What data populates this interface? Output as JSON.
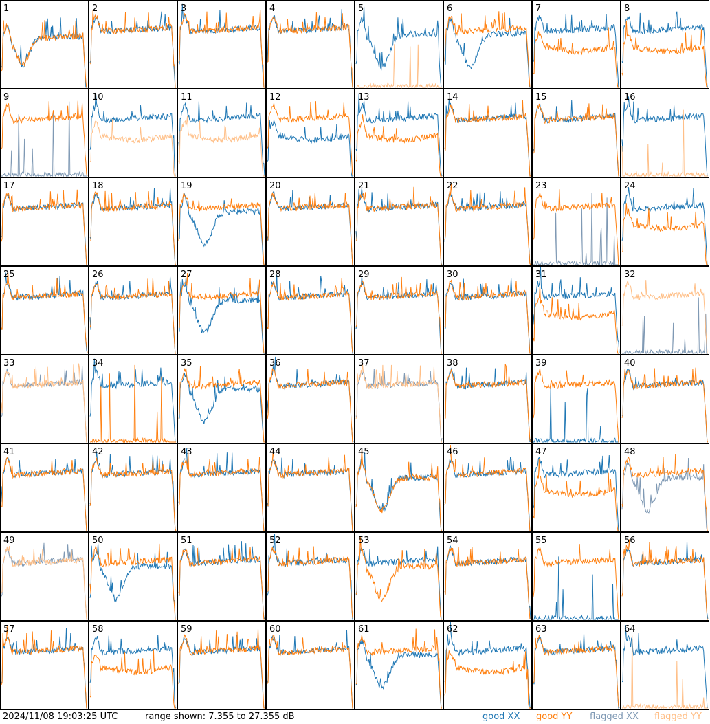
{
  "footer": {
    "timestamp": "2024/11/08 19:03:25 UTC",
    "range_text": "range shown: 7.355 to 27.355 dB"
  },
  "legend": [
    {
      "label": "good XX",
      "color": "#1f77b4"
    },
    {
      "label": "good YY",
      "color": "#ff7f0e"
    },
    {
      "label": "flagged XX",
      "color": "#7f99b4"
    },
    {
      "label": "flagged YY",
      "color": "#ffbf87"
    }
  ],
  "chart_data": {
    "type": "line",
    "ylim": [
      7.355,
      27.355
    ],
    "y_unit": "dB",
    "panels": [
      {
        "label": "1",
        "xx": "hump",
        "yy": "hump",
        "flag_xx": false,
        "flag_yy": false
      },
      {
        "label": "2",
        "xx": "flat",
        "yy": "flat",
        "flag_xx": false,
        "flag_yy": false
      },
      {
        "label": "3",
        "xx": "flat",
        "yy": "flat",
        "flag_xx": false,
        "flag_yy": false
      },
      {
        "label": "4",
        "xx": "flat",
        "yy": "flat",
        "flag_xx": false,
        "flag_yy": false
      },
      {
        "label": "5",
        "xx": "dip",
        "yy": "dead",
        "flag_xx": false,
        "flag_yy": true
      },
      {
        "label": "6",
        "xx": "dip",
        "yy": "flat",
        "flag_xx": false,
        "flag_yy": false
      },
      {
        "label": "7",
        "xx": "flat",
        "yy": "low",
        "flag_xx": false,
        "flag_yy": false
      },
      {
        "label": "8",
        "xx": "flat",
        "yy": "low",
        "flag_xx": false,
        "flag_yy": false
      },
      {
        "label": "9",
        "xx": "dead",
        "yy": "flat",
        "flag_xx": true,
        "flag_yy": false
      },
      {
        "label": "10",
        "xx": "flat",
        "yy": "low",
        "flag_xx": false,
        "flag_yy": true
      },
      {
        "label": "11",
        "xx": "flat",
        "yy": "low",
        "flag_xx": false,
        "flag_yy": true
      },
      {
        "label": "12",
        "xx": "low",
        "yy": "flat",
        "flag_xx": false,
        "flag_yy": false
      },
      {
        "label": "13",
        "xx": "flat",
        "yy": "low",
        "flag_xx": false,
        "flag_yy": false
      },
      {
        "label": "14",
        "xx": "flat",
        "yy": "flat",
        "flag_xx": false,
        "flag_yy": false
      },
      {
        "label": "15",
        "xx": "flat",
        "yy": "flat",
        "flag_xx": false,
        "flag_yy": false
      },
      {
        "label": "16",
        "xx": "flat",
        "yy": "dead",
        "flag_xx": false,
        "flag_yy": true
      },
      {
        "label": "17",
        "xx": "flat",
        "yy": "flat",
        "flag_xx": false,
        "flag_yy": false
      },
      {
        "label": "18",
        "xx": "flat",
        "yy": "flat",
        "flag_xx": false,
        "flag_yy": false
      },
      {
        "label": "19",
        "xx": "dip",
        "yy": "flat",
        "flag_xx": false,
        "flag_yy": false
      },
      {
        "label": "20",
        "xx": "flat",
        "yy": "flat",
        "flag_xx": false,
        "flag_yy": false
      },
      {
        "label": "21",
        "xx": "flat",
        "yy": "flat",
        "flag_xx": false,
        "flag_yy": false
      },
      {
        "label": "22",
        "xx": "flat",
        "yy": "flat",
        "flag_xx": false,
        "flag_yy": false
      },
      {
        "label": "23",
        "xx": "dead",
        "yy": "flat",
        "flag_xx": true,
        "flag_yy": false
      },
      {
        "label": "24",
        "xx": "flat",
        "yy": "low",
        "flag_xx": false,
        "flag_yy": false
      },
      {
        "label": "25",
        "xx": "flat",
        "yy": "flat",
        "flag_xx": false,
        "flag_yy": false
      },
      {
        "label": "26",
        "xx": "flat",
        "yy": "flat",
        "flag_xx": false,
        "flag_yy": false
      },
      {
        "label": "27",
        "xx": "dip",
        "yy": "flat",
        "flag_xx": false,
        "flag_yy": false
      },
      {
        "label": "28",
        "xx": "flat",
        "yy": "flat",
        "flag_xx": false,
        "flag_yy": false
      },
      {
        "label": "29",
        "xx": "flat",
        "yy": "flat",
        "flag_xx": false,
        "flag_yy": false
      },
      {
        "label": "30",
        "xx": "flat",
        "yy": "flat",
        "flag_xx": false,
        "flag_yy": false
      },
      {
        "label": "31",
        "xx": "flat",
        "yy": "low",
        "flag_xx": false,
        "flag_yy": false
      },
      {
        "label": "32",
        "xx": "dead",
        "yy": "flat",
        "flag_xx": true,
        "flag_yy": true
      },
      {
        "label": "33",
        "xx": "flat",
        "yy": "flat",
        "flag_xx": true,
        "flag_yy": true
      },
      {
        "label": "34",
        "xx": "flat",
        "yy": "dead",
        "flag_xx": false,
        "flag_yy": false
      },
      {
        "label": "35",
        "xx": "dip",
        "yy": "flat",
        "flag_xx": false,
        "flag_yy": false
      },
      {
        "label": "36",
        "xx": "flat",
        "yy": "flat",
        "flag_xx": false,
        "flag_yy": false
      },
      {
        "label": "37",
        "xx": "flat",
        "yy": "flat",
        "flag_xx": true,
        "flag_yy": true
      },
      {
        "label": "38",
        "xx": "flat",
        "yy": "flat",
        "flag_xx": false,
        "flag_yy": false
      },
      {
        "label": "39",
        "xx": "dead",
        "yy": "flat",
        "flag_xx": false,
        "flag_yy": false
      },
      {
        "label": "40",
        "xx": "flat",
        "yy": "flat",
        "flag_xx": false,
        "flag_yy": false
      },
      {
        "label": "41",
        "xx": "flat",
        "yy": "flat",
        "flag_xx": false,
        "flag_yy": false
      },
      {
        "label": "42",
        "xx": "flat",
        "yy": "flat",
        "flag_xx": false,
        "flag_yy": false
      },
      {
        "label": "43",
        "xx": "flat",
        "yy": "flat",
        "flag_xx": false,
        "flag_yy": false
      },
      {
        "label": "44",
        "xx": "flat",
        "yy": "flat",
        "flag_xx": false,
        "flag_yy": false
      },
      {
        "label": "45",
        "xx": "dip",
        "yy": "dip",
        "flag_xx": false,
        "flag_yy": false
      },
      {
        "label": "46",
        "xx": "flat",
        "yy": "flat",
        "flag_xx": false,
        "flag_yy": false
      },
      {
        "label": "47",
        "xx": "flat",
        "yy": "low",
        "flag_xx": false,
        "flag_yy": false
      },
      {
        "label": "48",
        "xx": "dip",
        "yy": "flat",
        "flag_xx": true,
        "flag_yy": false
      },
      {
        "label": "49",
        "xx": "flat",
        "yy": "flat",
        "flag_xx": true,
        "flag_yy": true
      },
      {
        "label": "50",
        "xx": "dip",
        "yy": "flat",
        "flag_xx": false,
        "flag_yy": false
      },
      {
        "label": "51",
        "xx": "flat",
        "yy": "flat",
        "flag_xx": false,
        "flag_yy": false
      },
      {
        "label": "52",
        "xx": "flat",
        "yy": "flat",
        "flag_xx": false,
        "flag_yy": false
      },
      {
        "label": "53",
        "xx": "flat",
        "yy": "dip",
        "flag_xx": false,
        "flag_yy": false
      },
      {
        "label": "54",
        "xx": "flat",
        "yy": "flat",
        "flag_xx": false,
        "flag_yy": false
      },
      {
        "label": "55",
        "xx": "dead",
        "yy": "flat",
        "flag_xx": false,
        "flag_yy": false
      },
      {
        "label": "56",
        "xx": "flat",
        "yy": "flat",
        "flag_xx": false,
        "flag_yy": false
      },
      {
        "label": "57",
        "xx": "flat",
        "yy": "flat",
        "flag_xx": false,
        "flag_yy": false
      },
      {
        "label": "58",
        "xx": "flat",
        "yy": "low",
        "flag_xx": false,
        "flag_yy": false
      },
      {
        "label": "59",
        "xx": "flat",
        "yy": "flat",
        "flag_xx": false,
        "flag_yy": false
      },
      {
        "label": "60",
        "xx": "flat",
        "yy": "flat",
        "flag_xx": false,
        "flag_yy": false
      },
      {
        "label": "61",
        "xx": "dip",
        "yy": "flat",
        "flag_xx": false,
        "flag_yy": false
      },
      {
        "label": "62",
        "xx": "flat",
        "yy": "low",
        "flag_xx": false,
        "flag_yy": false
      },
      {
        "label": "63",
        "xx": "flat",
        "yy": "flat",
        "flag_xx": false,
        "flag_yy": false
      },
      {
        "label": "64",
        "xx": "flat",
        "yy": "dead",
        "flag_xx": false,
        "flag_yy": true
      }
    ]
  }
}
